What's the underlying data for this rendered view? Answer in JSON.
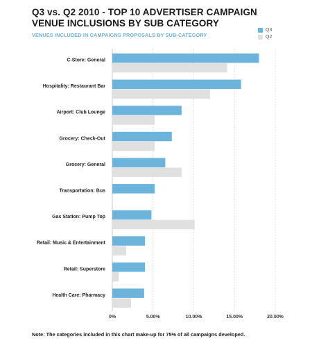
{
  "colors": {
    "q3": "#6cb4dc",
    "q2": "#e0e0e0",
    "grid": "#d9d9d9",
    "axis": "#bbbbbb"
  },
  "chart_data": {
    "type": "bar",
    "orientation": "horizontal",
    "title": "Q3 vs. Q2 2010 - TOP 10 ADVERTISER CAMPAIGN VENUE INCLUSIONS BY SUB CATEGORY",
    "subtitle": "VENUES INCLUDED IN CAMPAIGNS PROPOSALS BY SUB-CATEGORY",
    "categories": [
      "C-Store: General",
      "Hospitality: Restaurant Bar",
      "Airport: Club Lounge",
      "Grocery: Check-Out",
      "Grocery: General",
      "Transportation: Bus",
      "Gas Station: Pump Top",
      "Retail: Music & Entertainment",
      "Retail: Superstore",
      "Health Care: Pharmacy"
    ],
    "series": [
      {
        "name": "Q3",
        "values": [
          18.0,
          15.8,
          8.5,
          7.3,
          6.5,
          5.2,
          4.8,
          4.0,
          4.0,
          3.9
        ]
      },
      {
        "name": "Q2",
        "values": [
          14.1,
          12.0,
          5.2,
          5.2,
          8.5,
          0,
          10.1,
          1.7,
          0.8,
          2.3
        ]
      }
    ],
    "xlim": [
      0,
      20
    ],
    "ticks": [
      0,
      5,
      10,
      15,
      20
    ],
    "tick_labels": [
      "0%",
      "5.00%",
      "10.00%",
      "15.00%",
      "20.00%"
    ],
    "grid": true,
    "legend_position": "top-right"
  },
  "note": "Note: The categories included in this chart make-up for 75% of all campaigns developed."
}
